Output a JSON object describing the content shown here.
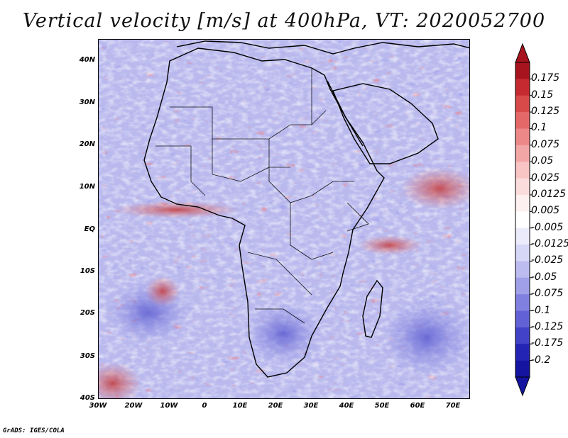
{
  "title": "Vertical velocity [m/s] at 400hPa, VT: 2020052700",
  "map": {
    "region": "Africa",
    "variable": "vertical velocity",
    "units": "m/s",
    "level": "400hPa",
    "valid_time": "2020052700",
    "lat_ticks": [
      "40N",
      "30N",
      "20N",
      "10N",
      "EQ",
      "10S",
      "20S",
      "30S",
      "40S"
    ],
    "lon_ticks": [
      "30W",
      "20W",
      "10W",
      "0",
      "10E",
      "20E",
      "30E",
      "40E",
      "50E",
      "60E",
      "70E"
    ],
    "lat_range": [
      -40,
      45
    ],
    "lon_range": [
      -30,
      75
    ]
  },
  "colorbar": {
    "labels": [
      "0.175",
      "0.15",
      "0.125",
      "0.1",
      "0.075",
      "0.05",
      "0.025",
      "0.0125",
      "0.005",
      "-0.005",
      "-0.0125",
      "-0.025",
      "-0.05",
      "-0.075",
      "-0.1",
      "-0.125",
      "-0.175",
      "-0.2"
    ],
    "colors": [
      "#a8141e",
      "#c42a30",
      "#d84a4a",
      "#e46868",
      "#ec8888",
      "#f2a6a6",
      "#f8c4c4",
      "#fbdcdc",
      "#fdf0f0",
      "#ffffff",
      "#ebebfb",
      "#d6d6f6",
      "#bcbcf0",
      "#a0a0e8",
      "#8080e0",
      "#6262d6",
      "#4242c8",
      "#2424b4",
      "#1414a0"
    ]
  },
  "footer": "GrADS: IGES/COLA"
}
